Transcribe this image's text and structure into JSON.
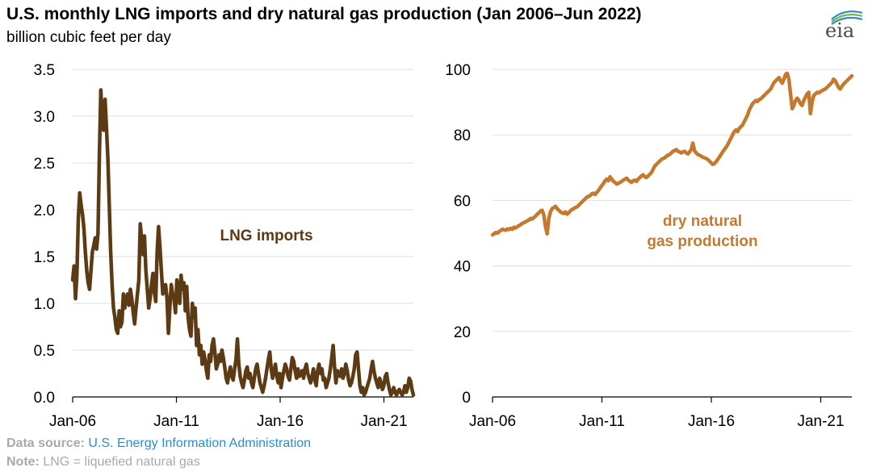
{
  "title": "U.S. monthly LNG imports and dry natural gas production (Jan 2006–Jun 2022)",
  "subtitle": "billion cubic feet per day",
  "logo_text": "eia",
  "footer": {
    "source_label": "Data source:",
    "source_text": "U.S. Energy Information Administration",
    "note_label": "Note:",
    "note_text": "LNG = liquefied natural gas"
  },
  "chart_data": [
    {
      "type": "line",
      "title": "LNG imports",
      "series": [
        {
          "name": "LNG imports",
          "color": "#5c3a14",
          "x_range": [
            2006.0,
            2022.42
          ],
          "values": [
            1.25,
            1.4,
            1.05,
            1.3,
            1.9,
            2.18,
            2.05,
            1.95,
            1.8,
            1.55,
            1.35,
            1.22,
            1.15,
            1.35,
            1.55,
            1.62,
            1.7,
            1.58,
            1.75,
            2.6,
            3.28,
            2.95,
            2.85,
            3.18,
            2.88,
            2.55,
            2.05,
            1.55,
            1.2,
            0.95,
            0.85,
            0.72,
            0.68,
            0.92,
            0.75,
            0.8,
            1.1,
            0.95,
            1.05,
            1.1,
            0.98,
            1.15,
            1.05,
            0.9,
            0.78,
            0.95,
            1.1,
            1.25,
            1.85,
            1.68,
            1.52,
            1.72,
            1.35,
            1.15,
            0.95,
            1.05,
            1.2,
            1.32,
            1.12,
            1.02,
            1.55,
            1.82,
            1.6,
            1.35,
            1.1,
            1.15,
            1.2,
            1.05,
            0.68,
            0.95,
            1.2,
            1.1,
            1.05,
            0.9,
            1.25,
            1.15,
            1.0,
            1.3,
            1.15,
            1.22,
            0.92,
            1.18,
            0.85,
            0.72,
            0.65,
            1.0,
            0.85,
            0.95,
            0.55,
            0.72,
            0.45,
            0.55,
            0.35,
            0.48,
            0.4,
            0.28,
            0.2,
            0.45,
            0.38,
            0.55,
            0.62,
            0.48,
            0.3,
            0.35,
            0.45,
            0.38,
            0.5,
            0.42,
            0.32,
            0.2,
            0.15,
            0.25,
            0.32,
            0.22,
            0.18,
            0.3,
            0.4,
            0.62,
            0.35,
            0.22,
            0.15,
            0.1,
            0.18,
            0.28,
            0.32,
            0.2,
            0.25,
            0.15,
            0.1,
            0.2,
            0.3,
            0.35,
            0.25,
            0.15,
            0.1,
            0.05,
            0.12,
            0.2,
            0.3,
            0.4,
            0.48,
            0.3,
            0.2,
            0.28,
            0.35,
            0.22,
            0.15,
            0.25,
            0.1,
            0.2,
            0.28,
            0.35,
            0.3,
            0.22,
            0.18,
            0.3,
            0.42,
            0.38,
            0.28,
            0.2,
            0.3,
            0.22,
            0.25,
            0.28,
            0.2,
            0.3,
            0.35,
            0.25,
            0.2,
            0.15,
            0.22,
            0.3,
            0.18,
            0.12,
            0.28,
            0.35,
            0.25,
            0.3,
            0.18,
            0.2,
            0.1,
            0.15,
            0.2,
            0.3,
            0.42,
            0.55,
            0.32,
            0.15,
            0.28,
            0.25,
            0.22,
            0.3,
            0.2,
            0.25,
            0.35,
            0.28,
            0.18,
            0.12,
            0.15,
            0.22,
            0.3,
            0.45,
            0.48,
            0.3,
            0.12,
            0.05,
            0.1,
            0.02,
            0.05,
            0.1,
            0.15,
            0.2,
            0.3,
            0.38,
            0.28,
            0.2,
            0.15,
            0.1,
            0.2,
            0.15,
            0.08,
            0.12,
            0.22,
            0.25,
            0.15,
            0.08,
            0.02,
            0.05,
            0.1,
            0.05,
            0.02,
            0.06,
            0.08,
            0.05,
            0.02,
            0.05,
            0.12,
            0.05,
            0.1,
            0.2,
            0.17,
            0.08,
            0.02
          ]
        }
      ],
      "ylim": [
        0,
        3.5
      ],
      "yticks": [
        "0.0",
        "0.5",
        "1.0",
        "1.5",
        "2.0",
        "2.5",
        "3.0",
        "3.5"
      ],
      "xticks": [
        "Jan-06",
        "Jan-11",
        "Jan-16",
        "Jan-21"
      ],
      "annotation": "LNG imports"
    },
    {
      "type": "line",
      "title": "dry natural gas production",
      "series": [
        {
          "name": "dry natural gas production",
          "color": "#c4792f",
          "x_range": [
            2006.0,
            2022.42
          ],
          "values": [
            49.5,
            49.8,
            50.2,
            50.0,
            50.5,
            50.8,
            51.2,
            51.0,
            50.9,
            51.3,
            51.1,
            51.5,
            51.2,
            51.8,
            51.6,
            52.0,
            52.3,
            52.6,
            53.0,
            53.2,
            53.5,
            53.8,
            54.0,
            54.5,
            54.3,
            54.8,
            55.2,
            55.8,
            56.2,
            56.8,
            57.0,
            55.5,
            52.0,
            49.8,
            54.5,
            56.5,
            57.5,
            57.8,
            58.2,
            57.5,
            57.0,
            56.5,
            56.2,
            56.0,
            56.5,
            55.8,
            56.2,
            56.8,
            57.2,
            57.5,
            57.8,
            58.0,
            58.5,
            59.0,
            59.5,
            60.0,
            60.5,
            61.0,
            61.2,
            61.5,
            62.0,
            62.2,
            61.8,
            62.5,
            63.0,
            63.8,
            64.5,
            65.2,
            66.0,
            66.5,
            66.0,
            67.2,
            66.5,
            65.8,
            65.5,
            65.0,
            65.2,
            65.5,
            65.8,
            66.2,
            66.5,
            66.8,
            66.2,
            65.8,
            65.5,
            66.0,
            66.2,
            65.8,
            66.5,
            67.0,
            67.5,
            67.8,
            67.2,
            67.0,
            67.5,
            68.0,
            68.5,
            69.5,
            70.5,
            71.0,
            71.5,
            72.0,
            72.5,
            72.8,
            73.0,
            73.5,
            73.8,
            74.0,
            74.5,
            75.0,
            75.2,
            75.5,
            75.0,
            74.8,
            74.5,
            74.8,
            75.0,
            74.5,
            74.2,
            74.8,
            75.5,
            77.5,
            75.2,
            74.5,
            74.0,
            73.8,
            73.5,
            73.2,
            73.0,
            72.8,
            72.5,
            72.0,
            71.5,
            71.0,
            71.2,
            71.8,
            72.5,
            73.2,
            74.0,
            74.8,
            75.5,
            76.2,
            77.0,
            78.0,
            79.0,
            80.0,
            81.0,
            81.5,
            81.0,
            82.0,
            82.5,
            83.0,
            84.0,
            85.0,
            86.0,
            87.5,
            88.5,
            89.5,
            90.0,
            90.5,
            90.2,
            90.8,
            91.0,
            91.5,
            92.0,
            92.5,
            93.0,
            93.5,
            94.0,
            95.0,
            96.0,
            96.5,
            97.0,
            97.5,
            96.5,
            95.8,
            97.0,
            98.5,
            98.8,
            97.0,
            92.5,
            88.0,
            89.0,
            90.5,
            91.2,
            90.5,
            89.5,
            89.0,
            90.5,
            91.5,
            92.5,
            93.0,
            86.5,
            90.0,
            92.0,
            92.5,
            93.0,
            92.8,
            93.2,
            93.5,
            93.8,
            94.0,
            94.5,
            95.0,
            95.5,
            96.0,
            97.0,
            96.5,
            95.5,
            94.5,
            94.0,
            94.8,
            95.5,
            96.0,
            96.5,
            97.0,
            97.5,
            98.0
          ]
        }
      ],
      "ylim": [
        0,
        100
      ],
      "yticks": [
        "0",
        "20",
        "40",
        "60",
        "80",
        "100"
      ],
      "xticks": [
        "Jan-06",
        "Jan-11",
        "Jan-16",
        "Jan-21"
      ],
      "annotation": [
        "dry natural",
        "gas production"
      ]
    }
  ]
}
